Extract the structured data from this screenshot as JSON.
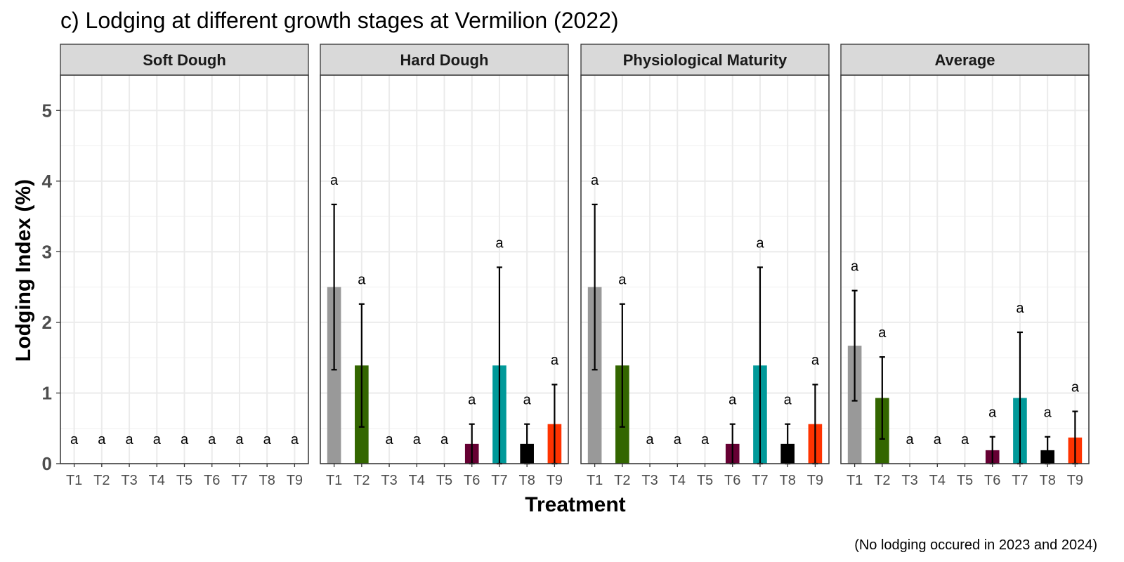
{
  "chart_data": {
    "type": "bar",
    "title": "c) Lodging at different growth stages at Vermilion (2022)",
    "xlabel": "Treatment",
    "ylabel": "Lodging Index (%)",
    "caption": "(No lodging occured in 2023 and 2024)",
    "ylim": [
      0,
      5.5
    ],
    "yticks": [
      0,
      1,
      2,
      3,
      4,
      5
    ],
    "grid": true,
    "categories": [
      "T1",
      "T2",
      "T3",
      "T4",
      "T5",
      "T6",
      "T7",
      "T8",
      "T9"
    ],
    "colors": [
      "#999999",
      "#336600",
      "#999999",
      "#999999",
      "#999999",
      "#660033",
      "#009999",
      "#000000",
      "#ff3300"
    ],
    "panels": [
      {
        "name": "Soft Dough",
        "values": [
          0,
          0,
          0,
          0,
          0,
          0,
          0,
          0,
          0
        ],
        "errors": [
          0,
          0,
          0,
          0,
          0,
          0,
          0,
          0,
          0
        ],
        "letters": [
          "a",
          "a",
          "a",
          "a",
          "a",
          "a",
          "a",
          "a",
          "a"
        ]
      },
      {
        "name": "Hard Dough",
        "values": [
          2.5,
          1.39,
          0,
          0,
          0,
          0.28,
          1.39,
          0.28,
          0.56
        ],
        "errors": [
          1.17,
          0.87,
          0,
          0,
          0,
          0.28,
          1.39,
          0.28,
          0.56
        ],
        "letters": [
          "a",
          "a",
          "a",
          "a",
          "a",
          "a",
          "a",
          "a",
          "a"
        ]
      },
      {
        "name": "Physiological Maturity",
        "values": [
          2.5,
          1.39,
          0,
          0,
          0,
          0.28,
          1.39,
          0.28,
          0.56
        ],
        "errors": [
          1.17,
          0.87,
          0,
          0,
          0,
          0.28,
          1.39,
          0.28,
          0.56
        ],
        "letters": [
          "a",
          "a",
          "a",
          "a",
          "a",
          "a",
          "a",
          "a",
          "a"
        ]
      },
      {
        "name": "Average",
        "values": [
          1.67,
          0.93,
          0,
          0,
          0,
          0.19,
          0.93,
          0.19,
          0.37
        ],
        "errors": [
          0.78,
          0.58,
          0,
          0,
          0,
          0.19,
          0.93,
          0.19,
          0.37
        ],
        "letters": [
          "a",
          "a",
          "a",
          "a",
          "a",
          "a",
          "a",
          "a",
          "a"
        ]
      }
    ]
  }
}
